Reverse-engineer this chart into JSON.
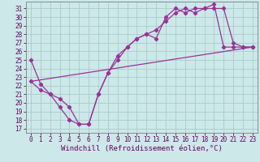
{
  "xlabel": "Windchill (Refroidissement éolien,°C)",
  "ylabel": "",
  "xlim": [
    -0.5,
    23.5
  ],
  "ylim": [
    16.5,
    31.8
  ],
  "xticks": [
    0,
    1,
    2,
    3,
    4,
    5,
    6,
    7,
    8,
    9,
    10,
    11,
    12,
    13,
    14,
    15,
    16,
    17,
    18,
    19,
    20,
    21,
    22,
    23
  ],
  "yticks": [
    17,
    18,
    19,
    20,
    21,
    22,
    23,
    24,
    25,
    26,
    27,
    28,
    29,
    30,
    31
  ],
  "bg_color": "#cce8e8",
  "grid_color": "#aacccc",
  "line_color": "#993399",
  "line1_x": [
    0,
    1,
    2,
    3,
    4,
    5,
    6,
    7,
    8,
    9,
    10,
    11,
    12,
    13,
    14,
    15,
    16,
    17,
    18,
    19,
    20,
    21,
    22,
    23
  ],
  "line1_y": [
    25.0,
    22.2,
    21.0,
    20.5,
    19.5,
    17.5,
    17.5,
    21.0,
    23.5,
    25.0,
    26.5,
    27.5,
    28.0,
    27.5,
    30.0,
    31.0,
    30.5,
    31.0,
    31.0,
    31.0,
    31.0,
    27.0,
    26.5,
    26.5
  ],
  "line2_x": [
    0,
    1,
    2,
    3,
    4,
    5,
    6,
    7,
    8,
    9,
    10,
    11,
    12,
    13,
    14,
    15,
    16,
    17,
    18,
    19,
    20,
    21,
    22,
    23
  ],
  "line2_y": [
    22.5,
    21.5,
    21.0,
    19.5,
    18.0,
    17.5,
    17.5,
    21.0,
    23.5,
    25.5,
    26.5,
    27.5,
    28.0,
    28.5,
    29.5,
    30.5,
    31.0,
    30.5,
    31.0,
    31.5,
    26.5,
    26.5,
    26.5,
    26.5
  ],
  "trend_x": [
    0,
    23
  ],
  "trend_y": [
    22.5,
    26.5
  ],
  "font_size_xlabel": 6.5,
  "tick_fontsize": 5.5
}
